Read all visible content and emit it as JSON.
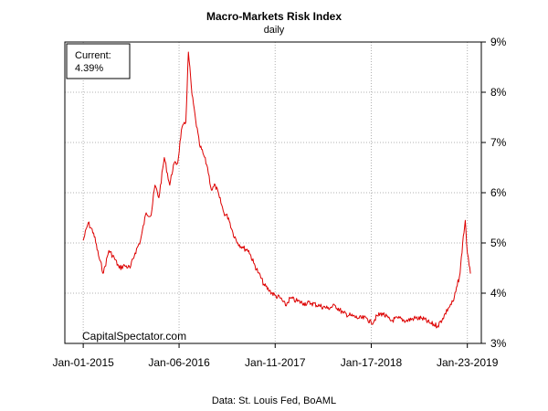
{
  "chart_data": {
    "type": "line",
    "title": "Macro-Markets Risk Index",
    "subtitle": "daily",
    "series_color": "#dd0000",
    "grid": true,
    "grid_style": "dotted",
    "y_axis_side": "right",
    "ylim": [
      3,
      9
    ],
    "y_ticks": [
      3,
      4,
      5,
      6,
      7,
      8,
      9
    ],
    "y_tick_labels": [
      "3%",
      "4%",
      "5%",
      "6%",
      "7%",
      "8%",
      "9%"
    ],
    "xlim": [
      "2014-10-22",
      "2019-03-18"
    ],
    "x_ticks": [
      "2015-01-01",
      "2016-01-06",
      "2017-01-11",
      "2018-01-17",
      "2019-01-23"
    ],
    "x_tick_labels": [
      "Jan-01-2015",
      "Jan-06-2016",
      "Jan-11-2017",
      "Jan-17-2018",
      "Jan-23-2019"
    ],
    "annotation": {
      "label": "Current:",
      "value": "4.39%",
      "placement": "top-left"
    },
    "watermark": "CapitalSpectator.com",
    "source": "Data: St. Louis Fed, BoAML",
    "series": [
      {
        "x": [
          "2015-01-01",
          "2015-01-20",
          "2015-02-10",
          "2015-03-01",
          "2015-03-20",
          "2015-04-10",
          "2015-05-01",
          "2015-05-20",
          "2015-06-10",
          "2015-07-01",
          "2015-07-20",
          "2015-08-10",
          "2015-09-01",
          "2015-09-20",
          "2015-10-05",
          "2015-10-20",
          "2015-11-10",
          "2015-12-01",
          "2015-12-15",
          "2016-01-01",
          "2016-01-15",
          "2016-02-01",
          "2016-02-11",
          "2016-02-25",
          "2016-03-10",
          "2016-03-25",
          "2016-04-10",
          "2016-04-25",
          "2016-05-10",
          "2016-05-25",
          "2016-06-10",
          "2016-06-27",
          "2016-07-15",
          "2016-08-01",
          "2016-08-20",
          "2016-09-10",
          "2016-10-01",
          "2016-10-20",
          "2016-11-08",
          "2016-12-01",
          "2016-12-20",
          "2017-01-11",
          "2017-02-01",
          "2017-02-20",
          "2017-03-10",
          "2017-04-01",
          "2017-05-01",
          "2017-06-01",
          "2017-07-01",
          "2017-08-01",
          "2017-09-01",
          "2017-10-01",
          "2017-11-01",
          "2017-12-01",
          "2018-01-01",
          "2018-01-17",
          "2018-02-10",
          "2018-03-01",
          "2018-04-01",
          "2018-05-01",
          "2018-06-01",
          "2018-07-01",
          "2018-08-01",
          "2018-09-01",
          "2018-10-01",
          "2018-10-20",
          "2018-11-10",
          "2018-12-01",
          "2018-12-15",
          "2018-12-26",
          "2019-01-05",
          "2019-01-15",
          "2019-01-23",
          "2019-01-30",
          "2019-02-04"
        ],
        "values": [
          5.05,
          5.4,
          5.2,
          4.75,
          4.4,
          4.85,
          4.7,
          4.5,
          4.55,
          4.5,
          4.8,
          5.05,
          5.6,
          5.55,
          6.15,
          5.9,
          6.7,
          6.15,
          6.55,
          6.6,
          7.25,
          7.4,
          8.8,
          7.95,
          7.45,
          6.95,
          6.75,
          6.5,
          6.05,
          6.15,
          5.9,
          5.6,
          5.5,
          5.2,
          5.0,
          4.9,
          4.85,
          4.6,
          4.4,
          4.15,
          4.05,
          3.95,
          3.9,
          3.75,
          3.9,
          3.85,
          3.8,
          3.8,
          3.75,
          3.7,
          3.75,
          3.6,
          3.55,
          3.5,
          3.5,
          3.4,
          3.55,
          3.6,
          3.45,
          3.5,
          3.45,
          3.5,
          3.5,
          3.4,
          3.35,
          3.5,
          3.7,
          3.85,
          4.15,
          4.4,
          5.0,
          5.45,
          4.8,
          4.55,
          4.39
        ]
      }
    ]
  }
}
